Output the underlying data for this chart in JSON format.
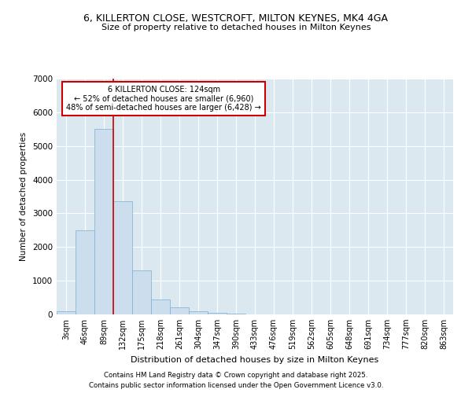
{
  "title_line1": "6, KILLERTON CLOSE, WESTCROFT, MILTON KEYNES, MK4 4GA",
  "title_line2": "Size of property relative to detached houses in Milton Keynes",
  "xlabel": "Distribution of detached houses by size in Milton Keynes",
  "ylabel": "Number of detached properties",
  "categories": [
    "3sqm",
    "46sqm",
    "89sqm",
    "132sqm",
    "175sqm",
    "218sqm",
    "261sqm",
    "304sqm",
    "347sqm",
    "390sqm",
    "433sqm",
    "476sqm",
    "519sqm",
    "562sqm",
    "605sqm",
    "648sqm",
    "691sqm",
    "734sqm",
    "777sqm",
    "820sqm",
    "863sqm"
  ],
  "values": [
    100,
    2500,
    5500,
    3350,
    1300,
    450,
    220,
    100,
    50,
    30,
    10,
    5,
    3,
    2,
    1,
    1,
    1,
    1,
    1,
    1,
    1
  ],
  "bar_color": "#ccdded",
  "bar_edge_color": "#7ab0d0",
  "bar_edge_width": 0.5,
  "red_line_index": 2.5,
  "annotation_text": "6 KILLERTON CLOSE: 124sqm\n← 52% of detached houses are smaller (6,960)\n48% of semi-detached houses are larger (6,428) →",
  "annotation_box_color": "#ffffff",
  "annotation_box_edge": "#cc0000",
  "ylim": [
    0,
    7000
  ],
  "yticks": [
    0,
    1000,
    2000,
    3000,
    4000,
    5000,
    6000,
    7000
  ],
  "plot_bg_color": "#dce8f0",
  "fig_bg": "#ffffff",
  "grid_color": "#ffffff",
  "footer_line1": "Contains HM Land Registry data © Crown copyright and database right 2025.",
  "footer_line2": "Contains public sector information licensed under the Open Government Licence v3.0."
}
